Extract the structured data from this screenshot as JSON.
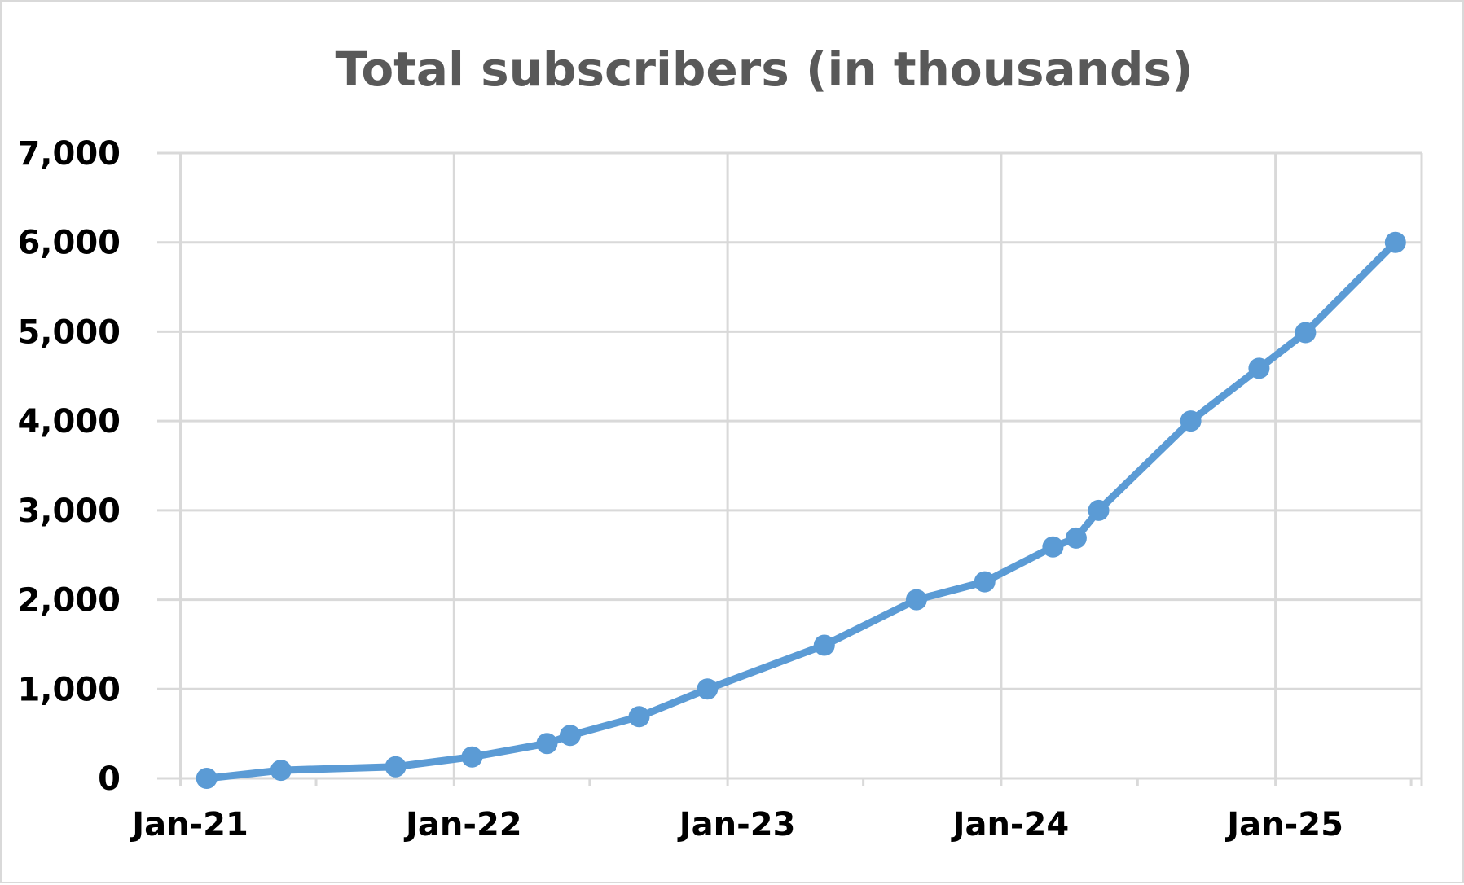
{
  "chart_data": {
    "type": "line",
    "title": "Total subscribers (in thousands)",
    "xlabel": "",
    "ylabel": "",
    "x_tick_labels": [
      "Jan-21",
      "Jan-22",
      "Jan-23",
      "Jan-24",
      "Jan-25"
    ],
    "y_tick_labels": [
      "0",
      "1,000",
      "2,000",
      "3,000",
      "4,000",
      "5,000",
      "6,000",
      "7,000"
    ],
    "xlim": [
      "2020-12-01",
      "2025-07-15"
    ],
    "ylim": [
      0,
      7000
    ],
    "grid": true,
    "legend": "none",
    "series": [
      {
        "color": "#5b9bd5",
        "points": [
          {
            "date": "2021-02-05",
            "value": 0
          },
          {
            "date": "2021-05-15",
            "value": 90
          },
          {
            "date": "2021-10-15",
            "value": 130
          },
          {
            "date": "2022-01-25",
            "value": 240
          },
          {
            "date": "2022-05-05",
            "value": 390
          },
          {
            "date": "2022-06-05",
            "value": 480
          },
          {
            "date": "2022-09-05",
            "value": 690
          },
          {
            "date": "2022-12-05",
            "value": 1000
          },
          {
            "date": "2023-05-10",
            "value": 1490
          },
          {
            "date": "2023-09-10",
            "value": 2000
          },
          {
            "date": "2023-12-10",
            "value": 2200
          },
          {
            "date": "2024-03-10",
            "value": 2590
          },
          {
            "date": "2024-04-10",
            "value": 2690
          },
          {
            "date": "2024-05-10",
            "value": 3000
          },
          {
            "date": "2024-09-10",
            "value": 4000
          },
          {
            "date": "2024-12-10",
            "value": 4590
          },
          {
            "date": "2025-02-10",
            "value": 4990
          },
          {
            "date": "2025-06-10",
            "value": 6000
          }
        ]
      }
    ]
  }
}
